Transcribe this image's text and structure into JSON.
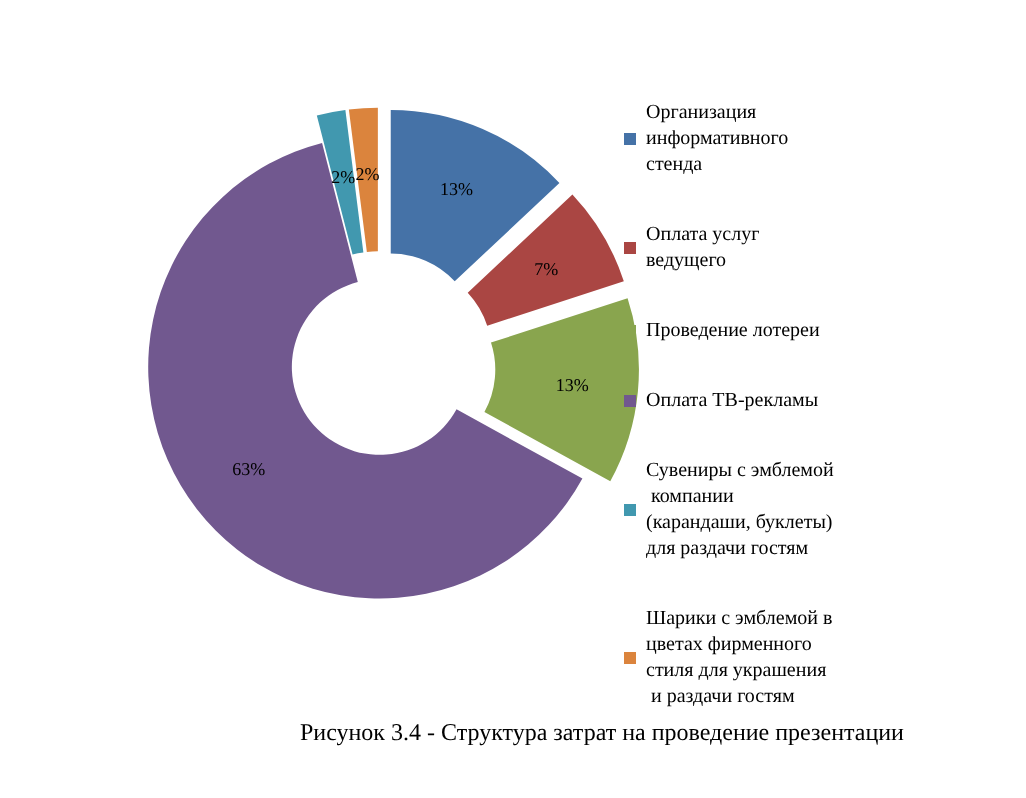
{
  "chart_data": {
    "type": "donut",
    "categories": [
      "Организация информативного стенда",
      "Оплата услуг ведущего",
      "Проведение лотереи",
      "Оплата ТВ-рекламы",
      "Сувениры с эмблемой компании (карандаши, буклеты) для раздачи гостям",
      "Шарики с эмблемой в цветах фирменного стиля для украшения и раздачи гостям"
    ],
    "values": [
      13,
      7,
      13,
      63,
      2,
      2
    ],
    "colors": [
      "#4572a7",
      "#aa4643",
      "#89a54e",
      "#71588f",
      "#4198af",
      "#db843d"
    ],
    "value_labels": [
      "13%",
      "7%",
      "13%",
      "63%",
      "2%",
      "2%"
    ],
    "legend": "right",
    "annotations": [
      "Рисунок 3.4 - Структура затрат на проведение презентации"
    ]
  }
}
